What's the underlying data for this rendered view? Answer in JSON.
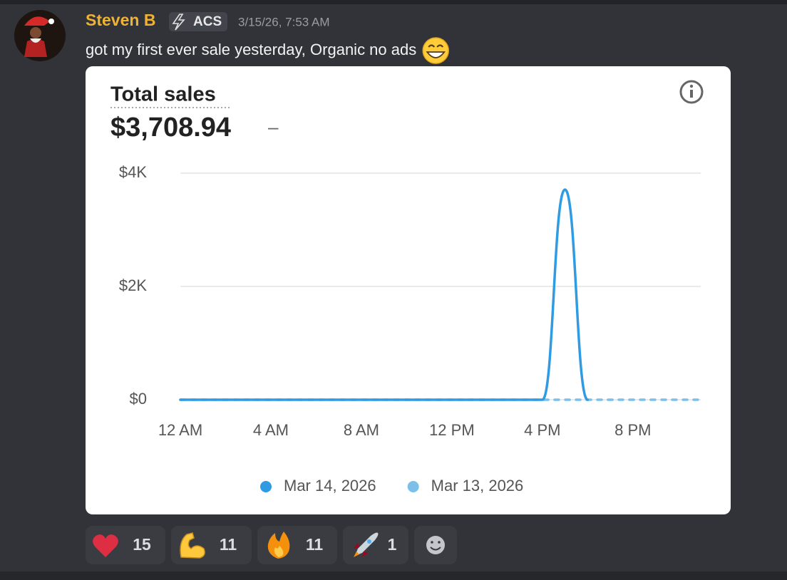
{
  "message": {
    "author": "Steven B",
    "tag": "ACS",
    "timestamp": "3/15/26, 7:53 AM",
    "text": "got my first ever sale yesterday, Organic no ads"
  },
  "chart_data": {
    "type": "line",
    "title": "Total sales",
    "total": "$3,708.94",
    "change": "–",
    "x": [
      0,
      1,
      2,
      3,
      4,
      5,
      6,
      7,
      8,
      9,
      10,
      11,
      12,
      13,
      14,
      15,
      16,
      17,
      18,
      19,
      20,
      21,
      22,
      23
    ],
    "xlim": [
      0,
      23
    ],
    "xticks": [
      {
        "value": 0,
        "label": "12 AM"
      },
      {
        "value": 4,
        "label": "4 AM"
      },
      {
        "value": 8,
        "label": "8 AM"
      },
      {
        "value": 12,
        "label": "12 PM"
      },
      {
        "value": 16,
        "label": "4 PM"
      },
      {
        "value": 20,
        "label": "8 PM"
      }
    ],
    "ylim": [
      0,
      4000
    ],
    "yticks": [
      {
        "value": 0,
        "label": "$0"
      },
      {
        "value": 2000,
        "label": "$2K"
      },
      {
        "value": 4000,
        "label": "$4K"
      }
    ],
    "grid": true,
    "series": [
      {
        "name": "Mar 14, 2026",
        "color": "#2f9be3",
        "dashed": false,
        "values": [
          0,
          0,
          0,
          0,
          0,
          0,
          0,
          0,
          0,
          0,
          0,
          0,
          0,
          0,
          0,
          0,
          0,
          3708.94,
          0,
          null,
          null,
          null,
          null,
          null
        ]
      },
      {
        "name": "Mar 13, 2026",
        "color": "#7cc0ea",
        "dashed": true,
        "values": [
          0,
          0,
          0,
          0,
          0,
          0,
          0,
          0,
          0,
          0,
          0,
          0,
          0,
          0,
          0,
          0,
          0,
          0,
          0,
          0,
          0,
          0,
          0,
          0
        ]
      }
    ]
  },
  "reactions": [
    {
      "count": 15
    },
    {
      "count": 11
    },
    {
      "count": 11
    },
    {
      "count": 1
    }
  ]
}
